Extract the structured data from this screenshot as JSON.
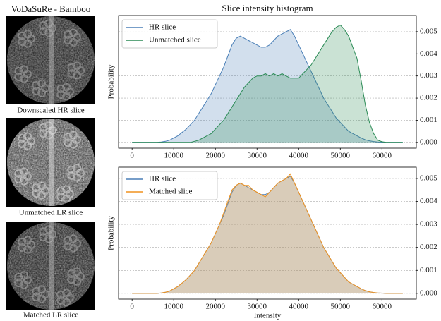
{
  "figure": {
    "title": "VoDaSuRe - Bamboo",
    "captions": [
      "Downscaled HR slice",
      "Unmatched LR slice",
      "Matched LR slice"
    ]
  },
  "chart_data": [
    {
      "type": "line",
      "title": "Slice intensity histogram",
      "y_label": "Probability",
      "fill": true,
      "legend": "upper left",
      "grid": true,
      "x": [
        0,
        1000,
        2000,
        3000,
        4000,
        5000,
        6000,
        7000,
        8000,
        9000,
        10000,
        11000,
        12000,
        13000,
        14000,
        15000,
        16000,
        17000,
        18000,
        19000,
        20000,
        21000,
        22000,
        23000,
        24000,
        25000,
        26000,
        27000,
        28000,
        29000,
        30000,
        31000,
        32000,
        33000,
        34000,
        35000,
        36000,
        37000,
        38000,
        39000,
        40000,
        41000,
        42000,
        43000,
        44000,
        45000,
        46000,
        47000,
        48000,
        49000,
        50000,
        51000,
        52000,
        53000,
        54000,
        55000,
        56000,
        57000,
        58000,
        59000,
        60000,
        61000,
        62000,
        63000,
        64000,
        65000
      ],
      "xlim": [
        -3250,
        68250
      ],
      "xticks": [
        0,
        10000,
        20000,
        30000,
        40000,
        50000,
        60000
      ],
      "ylim": [
        -0.00026,
        0.00573
      ],
      "yticks": [
        {
          "value": 0,
          "label": "0.000"
        },
        {
          "value": 0.001,
          "label": "0.001"
        },
        {
          "value": 0.002,
          "label": "0.002"
        },
        {
          "value": 0.003,
          "label": "0.003"
        },
        {
          "value": 0.004,
          "label": "0.004"
        },
        {
          "value": 0.005,
          "label": "0.005"
        }
      ],
      "series": [
        {
          "name": "HR slice",
          "color": "#4a7fb7",
          "values": [
            0,
            0,
            0,
            0,
            0,
            0,
            0,
            2e-05,
            5e-05,
            0.0001,
            0.0002,
            0.0003,
            0.00045,
            0.0006,
            0.0008,
            0.001,
            0.0013,
            0.0016,
            0.0019,
            0.0022,
            0.0026,
            0.003,
            0.0034,
            0.0039,
            0.0044,
            0.0047,
            0.0048,
            0.0047,
            0.0046,
            0.0045,
            0.0044,
            0.0043,
            0.0043,
            0.0044,
            0.0046,
            0.0048,
            0.0049,
            0.005,
            0.0051,
            0.0048,
            0.0044,
            0.004,
            0.0036,
            0.0032,
            0.0028,
            0.0024,
            0.002,
            0.0017,
            0.0014,
            0.0011,
            0.0009,
            0.0007,
            0.0005,
            0.0004,
            0.0003,
            0.0002,
            0.00012,
            7e-05,
            4e-05,
            2e-05,
            1e-05,
            0,
            0,
            0,
            0,
            0
          ]
        },
        {
          "name": "Unmatched slice",
          "color": "#2a8a55",
          "values": [
            0,
            0,
            0,
            0,
            0,
            0,
            0,
            0,
            0,
            0,
            0,
            0,
            0,
            0,
            0,
            5e-05,
            0.0001,
            0.0002,
            0.0003,
            0.0004,
            0.0006,
            0.0008,
            0.001,
            0.0013,
            0.0016,
            0.0019,
            0.0022,
            0.0025,
            0.0027,
            0.0029,
            0.003,
            0.003,
            0.0031,
            0.003,
            0.0031,
            0.003,
            0.0031,
            0.003,
            0.0029,
            0.0029,
            0.0029,
            0.0031,
            0.0033,
            0.0035,
            0.0038,
            0.0041,
            0.0044,
            0.0047,
            0.005,
            0.0052,
            0.0053,
            0.0051,
            0.0048,
            0.0043,
            0.0038,
            0.0028,
            0.0017,
            0.0009,
            0.0004,
            0.0001,
            3e-05,
            0,
            0,
            0,
            0,
            0
          ]
        }
      ]
    },
    {
      "type": "line",
      "x_label": "Intensity",
      "y_label": "Probability",
      "fill": true,
      "legend": "upper left",
      "grid": true,
      "x": [
        0,
        1000,
        2000,
        3000,
        4000,
        5000,
        6000,
        7000,
        8000,
        9000,
        10000,
        11000,
        12000,
        13000,
        14000,
        15000,
        16000,
        17000,
        18000,
        19000,
        20000,
        21000,
        22000,
        23000,
        24000,
        25000,
        26000,
        27000,
        28000,
        29000,
        30000,
        31000,
        32000,
        33000,
        34000,
        35000,
        36000,
        37000,
        38000,
        39000,
        40000,
        41000,
        42000,
        43000,
        44000,
        45000,
        46000,
        47000,
        48000,
        49000,
        50000,
        51000,
        52000,
        53000,
        54000,
        55000,
        56000,
        57000,
        58000,
        59000,
        60000,
        61000,
        62000,
        63000,
        64000,
        65000
      ],
      "xlim": [
        -3250,
        68250
      ],
      "xticks": [
        0,
        10000,
        20000,
        30000,
        40000,
        50000,
        60000
      ],
      "ylim": [
        -0.00025,
        0.00549
      ],
      "yticks": [
        {
          "value": 0,
          "label": "0.000"
        },
        {
          "value": 0.001,
          "label": "0.001"
        },
        {
          "value": 0.002,
          "label": "0.002"
        },
        {
          "value": 0.003,
          "label": "0.003"
        },
        {
          "value": 0.004,
          "label": "0.004"
        },
        {
          "value": 0.005,
          "label": "0.005"
        }
      ],
      "series": [
        {
          "name": "HR slice",
          "color": "#4a7fb7",
          "values": [
            0,
            0,
            0,
            0,
            0,
            0,
            0,
            2e-05,
            5e-05,
            0.0001,
            0.0002,
            0.0003,
            0.00045,
            0.0006,
            0.0008,
            0.001,
            0.0013,
            0.0016,
            0.0019,
            0.0022,
            0.0026,
            0.003,
            0.0034,
            0.0039,
            0.0044,
            0.0047,
            0.0048,
            0.0047,
            0.0046,
            0.0045,
            0.0044,
            0.0043,
            0.0043,
            0.0044,
            0.0046,
            0.0048,
            0.0049,
            0.005,
            0.0051,
            0.0048,
            0.0044,
            0.004,
            0.0036,
            0.0032,
            0.0028,
            0.0024,
            0.002,
            0.0017,
            0.0014,
            0.0011,
            0.0009,
            0.0007,
            0.0005,
            0.0004,
            0.0003,
            0.0002,
            0.00012,
            7e-05,
            4e-05,
            2e-05,
            1e-05,
            0,
            0,
            0,
            0,
            0
          ]
        },
        {
          "name": "Matched slice",
          "color": "#f0921e",
          "values": [
            0,
            0,
            0,
            0,
            0,
            0,
            0,
            2e-05,
            5e-05,
            0.0001,
            0.0002,
            0.0003,
            0.00045,
            0.0006,
            0.0008,
            0.001,
            0.0013,
            0.0016,
            0.0019,
            0.0022,
            0.0026,
            0.003,
            0.0035,
            0.004,
            0.0045,
            0.0047,
            0.0048,
            0.0047,
            0.0047,
            0.0045,
            0.0044,
            0.0043,
            0.0042,
            0.0044,
            0.0046,
            0.0048,
            0.0049,
            0.005,
            0.0052,
            0.0048,
            0.0044,
            0.004,
            0.0036,
            0.0032,
            0.0028,
            0.0024,
            0.002,
            0.0017,
            0.0014,
            0.0011,
            0.0009,
            0.0007,
            0.0005,
            0.0004,
            0.0003,
            0.0002,
            0.00012,
            7e-05,
            4e-05,
            2e-05,
            1e-05,
            0,
            0,
            0,
            0,
            0
          ]
        }
      ]
    }
  ]
}
